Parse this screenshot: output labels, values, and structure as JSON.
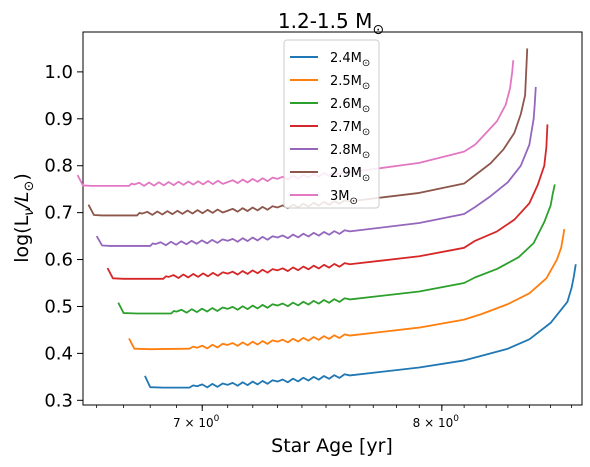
{
  "chart_data": {
    "type": "line",
    "title": "1.2-1.5 M$_\\odot$",
    "title_display": "1.2-1.5 M",
    "title_symbol": "⊙",
    "xlabel": "Star Age [yr]",
    "ylabel_display": "log(L",
    "ylabel_sub": "ν",
    "ylabel_mid": "/L",
    "ylabel_sub2": "⊙",
    "ylabel_end": ")",
    "x_scale": "log",
    "xlim": [
      6.55,
      8.65
    ],
    "ylim": [
      0.29,
      1.085
    ],
    "x_ticks": [
      {
        "value": 7.0,
        "base": "7",
        "exp": "0"
      },
      {
        "value": 8.0,
        "base": "8",
        "exp": "0"
      }
    ],
    "y_ticks": [
      0.3,
      0.4,
      0.5,
      0.6,
      0.7,
      0.8,
      0.9,
      1.0
    ],
    "y_tick_labels": [
      "0.3",
      "0.4",
      "0.5",
      "0.6",
      "0.7",
      "0.8",
      "0.9",
      "1.0"
    ],
    "grid": false,
    "legend_position": "upper center",
    "series": [
      {
        "name": "2.4M",
        "symbol": "⊙",
        "color": "#1f77b4",
        "points": [
          [
            6.78,
            0.352
          ],
          [
            6.8,
            0.328
          ],
          [
            6.85,
            0.327
          ],
          [
            6.95,
            0.327
          ],
          [
            6.98,
            0.33
          ],
          [
            7.1,
            0.333
          ],
          [
            7.3,
            0.34
          ],
          [
            7.6,
            0.353
          ],
          [
            7.9,
            0.37
          ],
          [
            8.1,
            0.385
          ],
          [
            8.18,
            0.395
          ],
          [
            8.3,
            0.41
          ],
          [
            8.4,
            0.43
          ],
          [
            8.5,
            0.465
          ],
          [
            8.58,
            0.51
          ],
          [
            8.6,
            0.54
          ],
          [
            8.61,
            0.562
          ],
          [
            8.62,
            0.59
          ]
        ]
      },
      {
        "name": "2.5M",
        "symbol": "⊙",
        "color": "#ff7f0e",
        "points": [
          [
            6.72,
            0.432
          ],
          [
            6.74,
            0.41
          ],
          [
            6.8,
            0.409
          ],
          [
            6.95,
            0.41
          ],
          [
            6.98,
            0.412
          ],
          [
            7.1,
            0.418
          ],
          [
            7.3,
            0.425
          ],
          [
            7.6,
            0.438
          ],
          [
            7.9,
            0.455
          ],
          [
            8.1,
            0.472
          ],
          [
            8.18,
            0.484
          ],
          [
            8.3,
            0.505
          ],
          [
            8.4,
            0.528
          ],
          [
            8.48,
            0.56
          ],
          [
            8.53,
            0.6
          ],
          [
            8.55,
            0.625
          ],
          [
            8.56,
            0.65
          ],
          [
            8.565,
            0.665
          ]
        ]
      },
      {
        "name": "2.6M",
        "symbol": "⊙",
        "color": "#2ca02c",
        "points": [
          [
            6.68,
            0.508
          ],
          [
            6.7,
            0.486
          ],
          [
            6.75,
            0.485
          ],
          [
            6.88,
            0.485
          ],
          [
            6.9,
            0.489
          ],
          [
            7.1,
            0.495
          ],
          [
            7.3,
            0.502
          ],
          [
            7.6,
            0.515
          ],
          [
            7.9,
            0.532
          ],
          [
            8.1,
            0.55
          ],
          [
            8.15,
            0.562
          ],
          [
            8.25,
            0.58
          ],
          [
            8.35,
            0.605
          ],
          [
            8.42,
            0.635
          ],
          [
            8.47,
            0.68
          ],
          [
            8.5,
            0.715
          ],
          [
            8.51,
            0.74
          ],
          [
            8.52,
            0.76
          ]
        ]
      },
      {
        "name": "2.7M",
        "symbol": "⊙",
        "color": "#d62728",
        "points": [
          [
            6.64,
            0.582
          ],
          [
            6.66,
            0.56
          ],
          [
            6.7,
            0.559
          ],
          [
            6.85,
            0.559
          ],
          [
            6.87,
            0.563
          ],
          [
            7.1,
            0.57
          ],
          [
            7.3,
            0.577
          ],
          [
            7.6,
            0.59
          ],
          [
            7.9,
            0.607
          ],
          [
            8.1,
            0.625
          ],
          [
            8.15,
            0.64
          ],
          [
            8.25,
            0.66
          ],
          [
            8.33,
            0.685
          ],
          [
            8.4,
            0.72
          ],
          [
            8.44,
            0.76
          ],
          [
            8.47,
            0.8
          ],
          [
            8.48,
            0.84
          ],
          [
            8.485,
            0.888
          ]
        ]
      },
      {
        "name": "2.8M",
        "symbol": "⊙",
        "color": "#9467bd",
        "points": [
          [
            6.6,
            0.65
          ],
          [
            6.62,
            0.63
          ],
          [
            6.65,
            0.629
          ],
          [
            6.8,
            0.629
          ],
          [
            6.82,
            0.633
          ],
          [
            7.1,
            0.64
          ],
          [
            7.3,
            0.647
          ],
          [
            7.6,
            0.66
          ],
          [
            7.9,
            0.678
          ],
          [
            8.1,
            0.697
          ],
          [
            8.15,
            0.712
          ],
          [
            8.22,
            0.735
          ],
          [
            8.3,
            0.765
          ],
          [
            8.36,
            0.8
          ],
          [
            8.4,
            0.845
          ],
          [
            8.42,
            0.9
          ],
          [
            8.425,
            0.93
          ],
          [
            8.43,
            0.968
          ]
        ]
      },
      {
        "name": "2.9M",
        "symbol": "⊙",
        "color": "#8c564b",
        "points": [
          [
            6.57,
            0.717
          ],
          [
            6.59,
            0.695
          ],
          [
            6.62,
            0.694
          ],
          [
            6.75,
            0.694
          ],
          [
            6.77,
            0.698
          ],
          [
            7.1,
            0.704
          ],
          [
            7.3,
            0.711
          ],
          [
            7.6,
            0.724
          ],
          [
            7.9,
            0.742
          ],
          [
            8.1,
            0.762
          ],
          [
            8.15,
            0.78
          ],
          [
            8.22,
            0.805
          ],
          [
            8.28,
            0.835
          ],
          [
            8.33,
            0.87
          ],
          [
            8.36,
            0.91
          ],
          [
            8.38,
            0.95
          ],
          [
            8.385,
            1.0
          ],
          [
            8.39,
            1.05
          ]
        ]
      },
      {
        "name": "3M",
        "symbol": "⊙",
        "color": "#e377c2",
        "points": [
          [
            6.53,
            0.78
          ],
          [
            6.55,
            0.758
          ],
          [
            6.58,
            0.757
          ],
          [
            6.72,
            0.757
          ],
          [
            6.74,
            0.76
          ],
          [
            7.1,
            0.765
          ],
          [
            7.3,
            0.772
          ],
          [
            7.6,
            0.786
          ],
          [
            7.9,
            0.806
          ],
          [
            8.1,
            0.83
          ],
          [
            8.15,
            0.845
          ],
          [
            8.2,
            0.87
          ],
          [
            8.25,
            0.895
          ],
          [
            8.29,
            0.93
          ],
          [
            8.31,
            0.965
          ],
          [
            8.32,
            1.0
          ],
          [
            8.325,
            1.025
          ]
        ]
      }
    ]
  }
}
